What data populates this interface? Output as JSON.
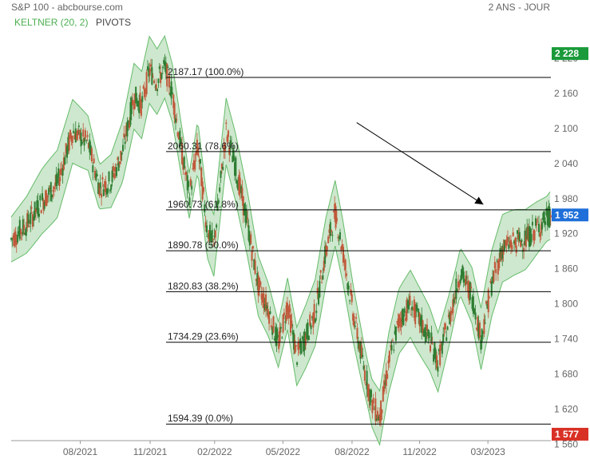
{
  "header": {
    "title": "S&P 100 - abcbourse.com",
    "period": "2 ANS - JOUR"
  },
  "legend": {
    "keltner": "KELTNER (20, 2)",
    "pivots": "PIVOTS"
  },
  "colors": {
    "up": "#2e7d32",
    "down": "#c0583a",
    "band_fill": "#c8e6c9",
    "band_line": "#66bb6a",
    "badge_green": "#1a9a3a",
    "badge_blue": "#1e6fd9",
    "badge_red": "#d93025"
  },
  "chart_data": {
    "type": "candlestick",
    "ylim": [
      1566,
      2265
    ],
    "y_ticks": [
      "1 560",
      "1 620",
      "1 680",
      "1 740",
      "1 800",
      "1 860",
      "1 920",
      "1 980",
      "2 040",
      "2 100",
      "2 160",
      "2 220"
    ],
    "y_tick_values": [
      1560,
      1620,
      1680,
      1740,
      1800,
      1860,
      1920,
      1980,
      2040,
      2100,
      2160,
      2220
    ],
    "x_ticks": [
      "08/2021",
      "11/2021",
      "02/2022",
      "05/2022",
      "08/2022",
      "11/2022",
      "03/2023"
    ],
    "x_tick_days": [
      90,
      181,
      265,
      354,
      444,
      532,
      621
    ],
    "x_range_days": [
      0,
      703
    ],
    "fib_levels": [
      {
        "value": 2187.17,
        "label": "2187.17  (100.0%)"
      },
      {
        "value": 2060.31,
        "label": "2060.31  (78.6%)"
      },
      {
        "value": 1960.73,
        "label": "1960.73  (61.8%)"
      },
      {
        "value": 1890.78,
        "label": "1890.78  (50.0%)"
      },
      {
        "value": 1820.83,
        "label": "1820.83  (38.2%)"
      },
      {
        "value": 1734.29,
        "label": "1734.29  (23.6%)"
      },
      {
        "value": 1594.39,
        "label": "1594.39  (0.0%)"
      }
    ],
    "badges": [
      {
        "label": "2 228",
        "value": 2228,
        "color": "#1a9a3a"
      },
      {
        "label": "1 952",
        "value": 1952,
        "color": "#1e6fd9"
      },
      {
        "label": "1 577",
        "value": 1577,
        "color": "#d93025"
      }
    ],
    "trend_arrow": {
      "from": [
        450,
        2110
      ],
      "to": [
        615,
        1970
      ]
    },
    "price_path": [
      [
        0,
        1910
      ],
      [
        20,
        1935
      ],
      [
        40,
        1975
      ],
      [
        60,
        2005
      ],
      [
        80,
        2095
      ],
      [
        100,
        2075
      ],
      [
        115,
        2000
      ],
      [
        130,
        2010
      ],
      [
        145,
        2060
      ],
      [
        160,
        2155
      ],
      [
        170,
        2140
      ],
      [
        180,
        2200
      ],
      [
        190,
        2180
      ],
      [
        200,
        2205
      ],
      [
        210,
        2160
      ],
      [
        222,
        2060
      ],
      [
        232,
        1985
      ],
      [
        243,
        2070
      ],
      [
        255,
        1930
      ],
      [
        264,
        1900
      ],
      [
        280,
        2095
      ],
      [
        292,
        2035
      ],
      [
        308,
        1935
      ],
      [
        322,
        1830
      ],
      [
        335,
        1790
      ],
      [
        348,
        1730
      ],
      [
        360,
        1800
      ],
      [
        372,
        1710
      ],
      [
        384,
        1745
      ],
      [
        396,
        1785
      ],
      [
        410,
        1890
      ],
      [
        422,
        1955
      ],
      [
        432,
        1890
      ],
      [
        446,
        1780
      ],
      [
        458,
        1700
      ],
      [
        470,
        1630
      ],
      [
        480,
        1605
      ],
      [
        492,
        1700
      ],
      [
        505,
        1770
      ],
      [
        520,
        1800
      ],
      [
        530,
        1775
      ],
      [
        545,
        1740
      ],
      [
        556,
        1700
      ],
      [
        570,
        1770
      ],
      [
        585,
        1855
      ],
      [
        600,
        1815
      ],
      [
        612,
        1740
      ],
      [
        626,
        1835
      ],
      [
        640,
        1895
      ],
      [
        655,
        1905
      ],
      [
        670,
        1910
      ],
      [
        685,
        1930
      ],
      [
        703,
        1952
      ]
    ],
    "band_width": 48
  }
}
